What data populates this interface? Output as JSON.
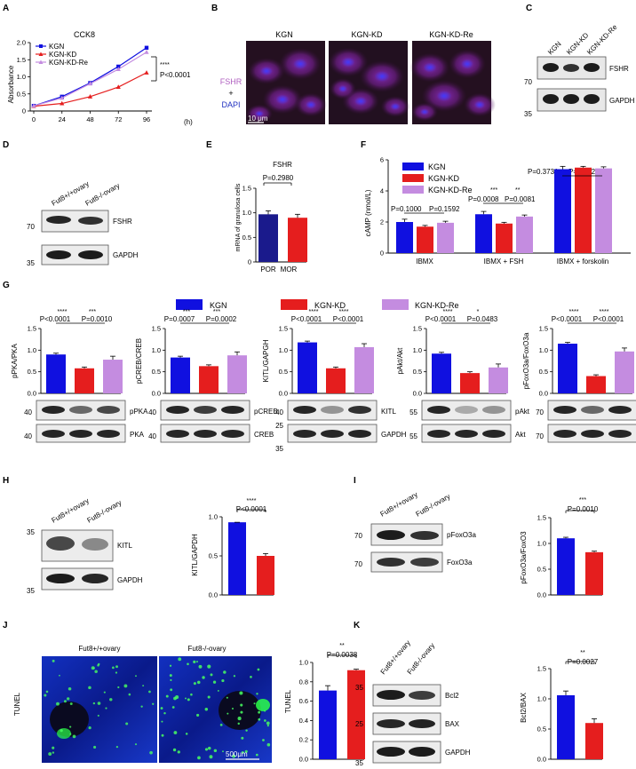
{
  "colors": {
    "kgn": "#1010e0",
    "kd": "#e51e1e",
    "re": "#c48ce0",
    "por": "#1a1a8c",
    "mor": "#e51e1e",
    "fluor": "#a020a0"
  },
  "panels": {
    "A": "A",
    "B": "B",
    "C": "C",
    "D": "D",
    "E": "E",
    "F": "F",
    "G": "G",
    "H": "H",
    "I": "I",
    "J": "J",
    "K": "K"
  },
  "groups": [
    "KGN",
    "KGN-KD",
    "KGN-KD-Re"
  ],
  "A": {
    "title": "CCK8",
    "ylabel": "Absorbance",
    "xunit": "(h)",
    "sig": "****",
    "pval": "P<0.0001",
    "yticks": [
      "0",
      "0.5",
      "1.0",
      "1.5",
      "2.0"
    ],
    "xticks": [
      "0",
      "24",
      "48",
      "72",
      "96"
    ]
  },
  "B": {
    "labels": [
      "KGN",
      "KGN-KD",
      "KGN-KD-Re"
    ],
    "stain_1": "FSHR",
    "plus": "+",
    "stain_2": "DAPI",
    "scale": "10 μm"
  },
  "C": {
    "lanes": [
      "KGN",
      "KGN-KD",
      "KGN-KD-Re"
    ],
    "bands": [
      "FSHR",
      "GAPDH"
    ],
    "mw": [
      "70",
      "35"
    ]
  },
  "D": {
    "lanes": [
      "Fut8+/+ovary",
      "Fut8-/-ovary"
    ],
    "bands": [
      "FSHR",
      "GAPDH"
    ],
    "mw": [
      "70",
      "35"
    ]
  },
  "E": {
    "title": "FSHR",
    "ylabel": "mRNA of granulosa cells",
    "pval": "P=0.2980",
    "yticks": [
      "0",
      "0.5",
      "1.0",
      "1.5"
    ]
  },
  "F": {
    "ylabel": "cAMP (nmol/L)",
    "yticks": [
      "0",
      "2",
      "4",
      "6"
    ],
    "p1a": "P=0.1000",
    "p1b": "P=0.1592",
    "s2a": "***",
    "s2b": "**",
    "p2a": "P=0.0008",
    "p2b": "P=0.0081",
    "p3a": "P=0.3731",
    "p3b": "P=0.9721"
  },
  "G": {
    "legend": [
      "KGN",
      "KGN-KD",
      "KGN-KD-Re"
    ],
    "sub": [
      {
        "ylabel": "pPKA/PKA",
        "s1": "****",
        "s2": "***",
        "p1": "P<0.0001",
        "p2": "P=0.0010",
        "bands": [
          "pPKA",
          "PKA"
        ],
        "mw": [
          "40",
          "40"
        ]
      },
      {
        "ylabel": "pCREB/CREB",
        "s1": "***",
        "s2": "***",
        "p1": "P=0.0007",
        "p2": "P=0.0002",
        "bands": [
          "pCREB",
          "CREB"
        ],
        "mw": [
          "40",
          "40"
        ]
      },
      {
        "ylabel": "KITL/GAPGH",
        "s1": "****",
        "s2": "****",
        "p1": "P<0.0001",
        "p2": "P<0.0001",
        "bands": [
          "KITL",
          "GAPDH"
        ],
        "mw": [
          "40",
          "25",
          "35"
        ]
      },
      {
        "ylabel": "pAkt/Akt",
        "s1": "****",
        "s2": "*",
        "p1": "P<0.0001",
        "p2": "P=0.0483",
        "bands": [
          "pAkt",
          "Akt"
        ],
        "mw": [
          "55",
          "55"
        ]
      },
      {
        "ylabel": "pFoxO3a/FoxO3a",
        "s1": "****",
        "s2": "****",
        "p1": "P<0.0001",
        "p2": "P<0.0001",
        "bands": [
          "pFoxO3a",
          "FoxO3a"
        ],
        "mw": [
          "70",
          "70"
        ]
      }
    ],
    "yt_a": [
      "0.0",
      "0.5",
      "1.0",
      "1.5"
    ],
    "yt_b": [
      "0.0",
      "0.5",
      "1.0",
      "1.5"
    ]
  },
  "H": {
    "lanes": [
      "Fut8+/+ovary",
      "Fut8-/-ovary"
    ],
    "bands": [
      "KITL",
      "GAPDH"
    ],
    "mw": [
      "35",
      "35"
    ],
    "ylabel": "KITL/GAPDH",
    "sig": "****",
    "pval": "P<0.0001",
    "yticks": [
      "0.0",
      "0.5",
      "1.0"
    ]
  },
  "I": {
    "lanes": [
      "Fut8+/+ovary",
      "Fut8-/-ovary"
    ],
    "bands": [
      "pFoxO3a",
      "FoxO3a"
    ],
    "mw": [
      "70",
      "70"
    ],
    "ylabel": "pFoxO3a/FoxO3",
    "sig": "***",
    "pval": "P=0.0010",
    "yticks": [
      "0.0",
      "0.5",
      "1.0",
      "1.5"
    ]
  },
  "J": {
    "labels": [
      "Fut8+/+ovary",
      "Fut8-/-ovary"
    ],
    "side": "TUNEL",
    "scale": "500μm",
    "ylabel": "TUNEL",
    "sig": "**",
    "pval": "P=0.0038",
    "yticks": [
      "0.0",
      "0.2",
      "0.4",
      "0.6",
      "0.8",
      "1.0"
    ]
  },
  "K": {
    "lanes": [
      "Fut8+/+ovary",
      "Fut8-/-ovary"
    ],
    "bands": [
      "Bcl2",
      "BAX",
      "GAPDH"
    ],
    "mw": [
      "35",
      "25",
      "35"
    ],
    "ylabel": "Bcl2/BAX",
    "sig": "**",
    "pval": "P=0.0027",
    "yticks": [
      "0.0",
      "0.5",
      "1.0",
      "1.5"
    ]
  },
  "chart_data": [
    {
      "id": "A",
      "type": "line",
      "title": "CCK8",
      "xlabel": "(h)",
      "ylabel": "Absorbance",
      "x": [
        0,
        24,
        48,
        72,
        96
      ],
      "ylim": [
        0,
        2.0
      ],
      "series": [
        {
          "name": "KGN",
          "values": [
            0.15,
            0.42,
            0.82,
            1.3,
            1.85
          ]
        },
        {
          "name": "KGN-KD",
          "values": [
            0.14,
            0.22,
            0.42,
            0.7,
            1.12
          ]
        },
        {
          "name": "KGN-KD-Re",
          "values": [
            0.15,
            0.38,
            0.8,
            1.22,
            1.72
          ]
        }
      ]
    },
    {
      "id": "E",
      "type": "bar",
      "title": "FSHR",
      "ylabel": "mRNA of granulosa cells",
      "categories": [
        "POR",
        "MOR"
      ],
      "values": [
        0.97,
        0.9
      ],
      "ylim": [
        0,
        1.5
      ]
    },
    {
      "id": "F",
      "type": "bar",
      "ylabel": "cAMP (nmol/L)",
      "categories": [
        "IBMX",
        "IBMX + FSH",
        "IBMX + forskolin"
      ],
      "ylim": [
        0,
        6
      ],
      "series": [
        {
          "name": "KGN",
          "values": [
            2.0,
            2.5,
            5.4
          ]
        },
        {
          "name": "KGN-KD",
          "values": [
            1.7,
            1.9,
            5.5
          ]
        },
        {
          "name": "KGN-KD-Re",
          "values": [
            1.95,
            2.35,
            5.45
          ]
        }
      ]
    },
    {
      "id": "G1",
      "type": "bar",
      "ylabel": "pPKA/PKA",
      "categories": [
        "KGN",
        "KGN-KD",
        "KGN-KD-Re"
      ],
      "values": [
        0.9,
        0.58,
        0.78
      ],
      "ylim": [
        0,
        1.5
      ]
    },
    {
      "id": "G2",
      "type": "bar",
      "ylabel": "pCREB/CREB",
      "categories": [
        "KGN",
        "KGN-KD",
        "KGN-KD-Re"
      ],
      "values": [
        0.83,
        0.63,
        0.88
      ],
      "ylim": [
        0,
        1.5
      ]
    },
    {
      "id": "G3",
      "type": "bar",
      "ylabel": "KITL/GAPGH",
      "categories": [
        "KGN",
        "KGN-KD",
        "KGN-KD-Re"
      ],
      "values": [
        1.18,
        0.58,
        1.07
      ],
      "ylim": [
        0,
        1.5
      ]
    },
    {
      "id": "G4",
      "type": "bar",
      "ylabel": "pAkt/Akt",
      "categories": [
        "KGN",
        "KGN-KD",
        "KGN-KD-Re"
      ],
      "values": [
        0.92,
        0.47,
        0.6
      ],
      "ylim": [
        0,
        1.5
      ]
    },
    {
      "id": "G5",
      "type": "bar",
      "ylabel": "pFoxO3a/FoxO3a",
      "categories": [
        "KGN",
        "KGN-KD",
        "KGN-KD-Re"
      ],
      "values": [
        1.15,
        0.4,
        0.97
      ],
      "ylim": [
        0,
        1.5
      ]
    },
    {
      "id": "H",
      "type": "bar",
      "ylabel": "KITL/GAPDH",
      "categories": [
        "Fut8+/+ovary",
        "Fut8-/-ovary"
      ],
      "values": [
        0.93,
        0.5
      ],
      "ylim": [
        0,
        1.0
      ]
    },
    {
      "id": "I",
      "type": "bar",
      "ylabel": "pFoxO3a/FoxO3",
      "categories": [
        "Fut8+/+ovary",
        "Fut8-/-ovary"
      ],
      "values": [
        1.1,
        0.83
      ],
      "ylim": [
        0,
        1.5
      ]
    },
    {
      "id": "J",
      "type": "bar",
      "ylabel": "TUNEL",
      "categories": [
        "Fut8+/+ovary",
        "Fut8-/-ovary"
      ],
      "values": [
        0.71,
        0.92
      ],
      "ylim": [
        0,
        1.0
      ]
    },
    {
      "id": "K",
      "type": "bar",
      "ylabel": "Bcl2/BAX",
      "categories": [
        "Fut8+/+ovary",
        "Fut8-/-ovary"
      ],
      "values": [
        1.06,
        0.6
      ],
      "ylim": [
        0,
        1.5
      ]
    }
  ]
}
